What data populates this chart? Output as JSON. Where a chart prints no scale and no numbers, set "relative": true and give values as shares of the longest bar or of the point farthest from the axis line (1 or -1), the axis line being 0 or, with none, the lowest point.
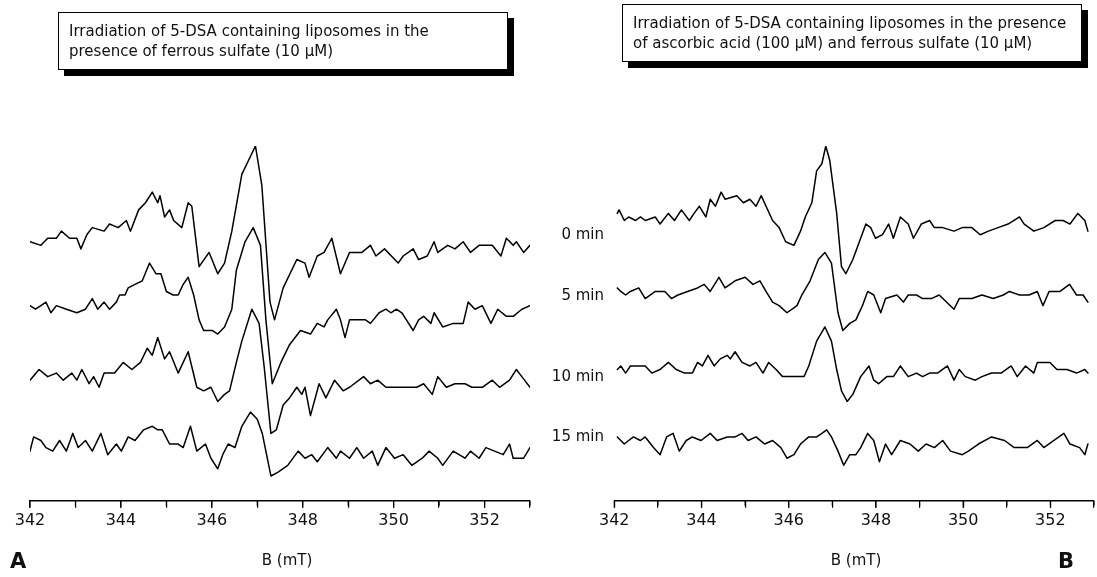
{
  "chart_data": [
    {
      "type": "line",
      "title": "Irradiation of 5-DSA containing liposomes in the presence of ferrous sulfate (10 μM)",
      "xlabel": "B (mT)",
      "relative": true,
      "marker": "none",
      "annotations": [
        "A"
      ],
      "xlim": [
        342,
        353
      ],
      "xticks": [
        342,
        {
          "value": 343,
          "label": null
        },
        344,
        {
          "value": 345,
          "label": null
        },
        346,
        {
          "value": 347,
          "label": null
        },
        348,
        {
          "value": 349,
          "label": null
        },
        350,
        {
          "value": 351,
          "label": null
        },
        352,
        {
          "value": 353,
          "label": null
        }
      ],
      "series": [
        {
          "name": "0 min",
          "color": "#000000",
          "x": [
            342.0,
            342.24,
            342.39,
            342.58,
            342.69,
            342.87,
            343.03,
            343.12,
            343.25,
            343.37,
            343.63,
            343.75,
            343.94,
            344.12,
            344.21,
            344.39,
            344.54,
            344.69,
            344.81,
            344.86,
            344.96,
            345.07,
            345.16,
            345.34,
            345.48,
            345.56,
            345.72,
            345.94,
            346.13,
            346.28,
            346.44,
            346.66,
            346.96,
            347.1,
            347.28,
            347.38,
            347.57,
            347.87,
            348.05,
            348.14,
            348.32,
            348.47,
            348.64,
            348.83,
            349.03,
            349.3,
            349.49,
            349.61,
            349.8,
            350.1,
            350.21,
            350.43,
            350.55,
            350.74,
            350.89,
            350.97,
            351.19,
            351.35,
            351.53,
            351.69,
            351.88,
            352.17,
            352.36,
            352.48,
            352.63,
            352.7,
            352.86,
            353.0
          ],
          "values": [
            0.73,
            0.72,
            0.74,
            0.74,
            0.76,
            0.74,
            0.74,
            0.71,
            0.75,
            0.77,
            0.76,
            0.78,
            0.77,
            0.79,
            0.76,
            0.82,
            0.84,
            0.87,
            0.84,
            0.86,
            0.8,
            0.82,
            0.79,
            0.77,
            0.84,
            0.83,
            0.66,
            0.7,
            0.64,
            0.67,
            0.76,
            0.92,
            1.0,
            0.89,
            0.56,
            0.51,
            0.6,
            0.68,
            0.67,
            0.63,
            0.69,
            0.7,
            0.74,
            0.64,
            0.7,
            0.7,
            0.72,
            0.69,
            0.71,
            0.67,
            0.69,
            0.71,
            0.68,
            0.69,
            0.73,
            0.7,
            0.72,
            0.71,
            0.73,
            0.7,
            0.72,
            0.72,
            0.69,
            0.74,
            0.72,
            0.73,
            0.7,
            0.72
          ]
        },
        {
          "name": "5 min",
          "color": "#000000",
          "x": [
            342.0,
            342.12,
            342.24,
            342.35,
            342.46,
            342.58,
            342.8,
            343.03,
            343.22,
            343.37,
            343.49,
            343.63,
            343.75,
            343.9,
            343.97,
            344.09,
            344.16,
            344.31,
            344.47,
            344.63,
            344.77,
            344.88,
            345.0,
            345.15,
            345.26,
            345.37,
            345.48,
            345.6,
            345.72,
            345.82,
            346.01,
            346.13,
            346.28,
            346.44,
            346.54,
            346.73,
            346.91,
            347.07,
            347.19,
            347.33,
            347.52,
            347.71,
            347.95,
            348.17,
            348.32,
            348.47,
            348.55,
            348.74,
            348.83,
            348.93,
            349.03,
            349.15,
            349.38,
            349.49,
            349.68,
            349.83,
            349.94,
            350.06,
            350.18,
            350.28,
            350.43,
            350.55,
            350.66,
            350.82,
            350.89,
            351.08,
            351.31,
            351.53,
            351.64,
            351.79,
            351.95,
            352.14,
            352.29,
            352.48,
            352.63,
            352.82,
            353.0
          ],
          "values": [
            0.55,
            0.54,
            0.55,
            0.56,
            0.53,
            0.55,
            0.54,
            0.53,
            0.54,
            0.57,
            0.54,
            0.56,
            0.54,
            0.56,
            0.58,
            0.58,
            0.6,
            0.61,
            0.62,
            0.67,
            0.64,
            0.64,
            0.59,
            0.58,
            0.58,
            0.61,
            0.63,
            0.58,
            0.51,
            0.48,
            0.48,
            0.47,
            0.49,
            0.54,
            0.65,
            0.73,
            0.77,
            0.72,
            0.51,
            0.33,
            0.39,
            0.44,
            0.48,
            0.47,
            0.5,
            0.49,
            0.51,
            0.54,
            0.51,
            0.46,
            0.51,
            0.51,
            0.51,
            0.5,
            0.53,
            0.54,
            0.53,
            0.54,
            0.53,
            0.51,
            0.48,
            0.51,
            0.52,
            0.5,
            0.53,
            0.49,
            0.5,
            0.5,
            0.56,
            0.54,
            0.55,
            0.5,
            0.54,
            0.52,
            0.52,
            0.54,
            0.55
          ]
        },
        {
          "name": "10 min",
          "color": "#000000",
          "x": [
            342.0,
            342.2,
            342.39,
            342.58,
            342.73,
            342.92,
            343.03,
            343.14,
            343.3,
            343.4,
            343.52,
            343.63,
            343.86,
            344.05,
            344.24,
            344.43,
            344.58,
            344.69,
            344.81,
            344.96,
            345.07,
            345.26,
            345.37,
            345.48,
            345.67,
            345.82,
            345.98,
            346.13,
            346.28,
            346.39,
            346.54,
            346.66,
            346.88,
            347.04,
            347.15,
            347.3,
            347.42,
            347.57,
            347.71,
            347.87,
            347.98,
            348.05,
            348.17,
            348.36,
            348.51,
            348.7,
            348.89,
            349.03,
            349.34,
            349.49,
            349.65,
            349.83,
            350.06,
            350.28,
            350.51,
            350.66,
            350.85,
            350.97,
            351.16,
            351.35,
            351.57,
            351.72,
            351.95,
            352.17,
            352.33,
            352.55,
            352.7,
            352.82,
            353.0
          ],
          "values": [
            0.34,
            0.37,
            0.35,
            0.36,
            0.34,
            0.36,
            0.34,
            0.37,
            0.33,
            0.35,
            0.32,
            0.36,
            0.36,
            0.39,
            0.37,
            0.39,
            0.43,
            0.41,
            0.46,
            0.4,
            0.42,
            0.36,
            0.39,
            0.42,
            0.32,
            0.31,
            0.32,
            0.28,
            0.3,
            0.31,
            0.39,
            0.45,
            0.54,
            0.5,
            0.38,
            0.19,
            0.2,
            0.27,
            0.29,
            0.32,
            0.3,
            0.32,
            0.24,
            0.33,
            0.29,
            0.34,
            0.31,
            0.32,
            0.35,
            0.33,
            0.34,
            0.32,
            0.32,
            0.32,
            0.32,
            0.33,
            0.3,
            0.35,
            0.32,
            0.33,
            0.33,
            0.32,
            0.32,
            0.34,
            0.32,
            0.34,
            0.37,
            0.35,
            0.32
          ]
        },
        {
          "name": "15 min",
          "color": "#000000",
          "x": [
            342.0,
            342.08,
            342.24,
            342.35,
            342.5,
            342.65,
            342.8,
            342.94,
            343.06,
            343.22,
            343.37,
            343.56,
            343.71,
            343.9,
            344.01,
            344.16,
            344.31,
            344.5,
            344.69,
            344.81,
            344.91,
            345.07,
            345.26,
            345.37,
            345.53,
            345.67,
            345.86,
            345.98,
            346.13,
            346.24,
            346.36,
            346.51,
            346.66,
            346.85,
            347.0,
            347.11,
            347.3,
            347.45,
            347.67,
            347.9,
            348.05,
            348.2,
            348.32,
            348.55,
            348.74,
            348.83,
            349.03,
            349.19,
            349.34,
            349.53,
            349.65,
            349.83,
            350.02,
            350.21,
            350.4,
            350.63,
            350.78,
            350.97,
            351.08,
            351.31,
            351.57,
            351.69,
            351.88,
            352.03,
            352.22,
            352.41,
            352.55,
            352.63,
            352.86,
            353.0
          ],
          "values": [
            0.14,
            0.18,
            0.17,
            0.15,
            0.14,
            0.17,
            0.14,
            0.19,
            0.15,
            0.17,
            0.14,
            0.19,
            0.13,
            0.16,
            0.14,
            0.18,
            0.17,
            0.2,
            0.21,
            0.2,
            0.2,
            0.16,
            0.16,
            0.15,
            0.21,
            0.14,
            0.16,
            0.12,
            0.09,
            0.13,
            0.16,
            0.15,
            0.21,
            0.25,
            0.23,
            0.19,
            0.07,
            0.08,
            0.1,
            0.14,
            0.12,
            0.13,
            0.11,
            0.15,
            0.12,
            0.14,
            0.12,
            0.15,
            0.12,
            0.14,
            0.1,
            0.15,
            0.12,
            0.13,
            0.1,
            0.12,
            0.14,
            0.12,
            0.1,
            0.14,
            0.12,
            0.14,
            0.12,
            0.15,
            0.14,
            0.13,
            0.16,
            0.12,
            0.12,
            0.15
          ]
        }
      ]
    },
    {
      "type": "line",
      "title": "Irradiation of 5-DSA containing liposomes in the presence of ascorbic acid (100 μM) and ferrous sulfate (10 μM)",
      "xlabel": "B (mT)",
      "relative": true,
      "marker": "none",
      "annotations": [
        "B"
      ],
      "xlim": [
        342,
        353
      ],
      "xticks": [
        342,
        {
          "value": 343,
          "label": null
        },
        344,
        {
          "value": 345,
          "label": null
        },
        346,
        {
          "value": 347,
          "label": null
        },
        348,
        {
          "value": 349,
          "label": null
        },
        350,
        {
          "value": 351,
          "label": null
        },
        352,
        {
          "value": 353,
          "label": null
        }
      ],
      "series": [
        {
          "color": "#000000",
          "x": [
            342.07,
            342.11,
            342.23,
            342.33,
            342.49,
            342.6,
            342.71,
            342.94,
            343.05,
            343.24,
            343.38,
            343.54,
            343.72,
            343.83,
            343.95,
            344.1,
            344.2,
            344.32,
            344.45,
            344.54,
            344.81,
            344.96,
            345.11,
            345.25,
            345.37,
            345.48,
            345.63,
            345.78,
            345.93,
            346.12,
            346.27,
            346.38,
            346.53,
            346.64,
            346.76,
            346.85,
            346.94,
            347.1,
            347.21,
            347.31,
            347.47,
            347.62,
            347.77,
            347.88,
            347.99,
            348.15,
            348.29,
            348.4,
            348.56,
            348.74,
            348.86,
            349.04,
            349.23,
            349.34,
            349.53,
            349.79,
            349.98,
            350.2,
            350.39,
            350.58,
            350.8,
            351.03,
            351.29,
            351.4,
            351.62,
            351.85,
            352.11,
            352.29,
            352.45,
            352.63,
            352.79,
            352.86
          ],
          "values": [
            0.81,
            0.82,
            0.79,
            0.8,
            0.79,
            0.8,
            0.79,
            0.8,
            0.78,
            0.81,
            0.79,
            0.82,
            0.79,
            0.81,
            0.83,
            0.8,
            0.85,
            0.83,
            0.87,
            0.85,
            0.86,
            0.84,
            0.85,
            0.83,
            0.86,
            0.83,
            0.79,
            0.77,
            0.73,
            0.72,
            0.76,
            0.8,
            0.84,
            0.93,
            0.95,
            1.0,
            0.96,
            0.81,
            0.66,
            0.64,
            0.68,
            0.73,
            0.78,
            0.77,
            0.74,
            0.75,
            0.78,
            0.74,
            0.8,
            0.78,
            0.74,
            0.78,
            0.79,
            0.77,
            0.77,
            0.76,
            0.77,
            0.77,
            0.75,
            0.76,
            0.77,
            0.78,
            0.8,
            0.78,
            0.76,
            0.77,
            0.79,
            0.79,
            0.78,
            0.81,
            0.79,
            0.76
          ]
        },
        {
          "color": "#000000",
          "x": [
            342.07,
            342.15,
            342.26,
            342.37,
            342.56,
            342.71,
            342.94,
            343.16,
            343.31,
            343.46,
            343.68,
            343.91,
            344.06,
            344.2,
            344.4,
            344.54,
            344.77,
            345.0,
            345.18,
            345.34,
            345.48,
            345.63,
            345.78,
            345.96,
            346.19,
            346.3,
            346.49,
            346.68,
            346.83,
            346.98,
            347.13,
            347.24,
            347.4,
            347.54,
            347.69,
            347.81,
            347.95,
            348.11,
            348.22,
            348.48,
            348.63,
            348.74,
            348.93,
            349.07,
            349.27,
            349.45,
            349.79,
            349.91,
            350.2,
            350.43,
            350.69,
            350.92,
            351.06,
            351.29,
            351.51,
            351.7,
            351.83,
            351.97,
            352.22,
            352.44,
            352.6,
            352.75,
            352.86
          ],
          "values": [
            0.6,
            0.59,
            0.58,
            0.59,
            0.6,
            0.57,
            0.59,
            0.59,
            0.57,
            0.58,
            0.59,
            0.6,
            0.61,
            0.59,
            0.63,
            0.6,
            0.62,
            0.63,
            0.61,
            0.62,
            0.59,
            0.56,
            0.55,
            0.53,
            0.55,
            0.58,
            0.62,
            0.68,
            0.7,
            0.67,
            0.53,
            0.48,
            0.5,
            0.51,
            0.55,
            0.59,
            0.58,
            0.53,
            0.57,
            0.58,
            0.56,
            0.58,
            0.58,
            0.57,
            0.57,
            0.58,
            0.54,
            0.57,
            0.57,
            0.58,
            0.57,
            0.58,
            0.59,
            0.58,
            0.58,
            0.59,
            0.55,
            0.59,
            0.59,
            0.61,
            0.58,
            0.58,
            0.56
          ]
        },
        {
          "color": "#000000",
          "x": [
            342.07,
            342.15,
            342.26,
            342.37,
            342.56,
            342.71,
            342.86,
            343.05,
            343.24,
            343.42,
            343.61,
            343.79,
            343.91,
            344.02,
            344.15,
            344.29,
            344.43,
            344.59,
            344.66,
            344.77,
            344.93,
            345.11,
            345.25,
            345.41,
            345.54,
            345.71,
            345.86,
            346.05,
            346.23,
            346.35,
            346.46,
            346.64,
            346.83,
            346.98,
            347.1,
            347.21,
            347.34,
            347.47,
            347.65,
            347.84,
            347.95,
            348.06,
            348.25,
            348.4,
            348.56,
            348.74,
            348.93,
            349.07,
            349.23,
            349.41,
            349.64,
            349.79,
            349.91,
            350.05,
            350.28,
            350.43,
            350.65,
            350.87,
            351.1,
            351.24,
            351.43,
            351.62,
            351.7,
            351.99,
            352.15,
            352.38,
            352.6,
            352.79,
            352.86
          ],
          "values": [
            0.37,
            0.38,
            0.36,
            0.38,
            0.38,
            0.38,
            0.36,
            0.37,
            0.39,
            0.37,
            0.36,
            0.36,
            0.39,
            0.38,
            0.41,
            0.38,
            0.4,
            0.41,
            0.4,
            0.42,
            0.39,
            0.38,
            0.39,
            0.36,
            0.39,
            0.37,
            0.35,
            0.35,
            0.35,
            0.35,
            0.38,
            0.45,
            0.49,
            0.45,
            0.37,
            0.31,
            0.28,
            0.3,
            0.35,
            0.38,
            0.34,
            0.33,
            0.35,
            0.35,
            0.38,
            0.35,
            0.36,
            0.35,
            0.36,
            0.36,
            0.38,
            0.34,
            0.37,
            0.35,
            0.34,
            0.35,
            0.36,
            0.36,
            0.38,
            0.35,
            0.38,
            0.36,
            0.39,
            0.39,
            0.37,
            0.37,
            0.36,
            0.37,
            0.36
          ]
        },
        {
          "color": "#000000",
          "x": [
            342.07,
            342.23,
            342.33,
            342.44,
            342.6,
            342.71,
            342.9,
            343.05,
            343.2,
            343.35,
            343.49,
            343.65,
            343.79,
            343.99,
            344.2,
            344.36,
            344.59,
            344.77,
            344.93,
            345.07,
            345.25,
            345.45,
            345.63,
            345.82,
            345.96,
            346.12,
            346.27,
            346.46,
            346.64,
            346.76,
            346.87,
            346.98,
            347.13,
            347.26,
            347.4,
            347.54,
            347.65,
            347.81,
            347.95,
            348.08,
            348.22,
            348.36,
            348.56,
            348.78,
            348.97,
            349.15,
            349.34,
            349.53,
            349.71,
            349.98,
            350.12,
            350.35,
            350.65,
            350.95,
            351.17,
            351.47,
            351.7,
            351.85,
            352.08,
            352.31,
            352.45,
            352.67,
            352.79,
            352.86
          ],
          "values": [
            0.18,
            0.16,
            0.17,
            0.18,
            0.17,
            0.18,
            0.15,
            0.13,
            0.18,
            0.19,
            0.14,
            0.17,
            0.18,
            0.17,
            0.19,
            0.17,
            0.18,
            0.18,
            0.19,
            0.17,
            0.18,
            0.16,
            0.17,
            0.15,
            0.12,
            0.13,
            0.16,
            0.18,
            0.18,
            0.19,
            0.2,
            0.18,
            0.14,
            0.1,
            0.13,
            0.13,
            0.15,
            0.19,
            0.17,
            0.11,
            0.16,
            0.13,
            0.17,
            0.16,
            0.14,
            0.16,
            0.15,
            0.17,
            0.14,
            0.13,
            0.14,
            0.16,
            0.18,
            0.17,
            0.15,
            0.15,
            0.17,
            0.15,
            0.17,
            0.19,
            0.16,
            0.15,
            0.13,
            0.16
          ]
        }
      ]
    }
  ]
}
